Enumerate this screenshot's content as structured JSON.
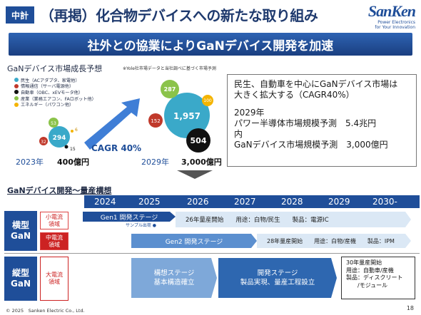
{
  "header": {
    "section_tag": "中計",
    "title": "（再掲）化合物デバイスへの新たな取り組み",
    "logo": "SanKen",
    "logo_sub1": "Power Electronics",
    "logo_sub2": "for Your Innovation"
  },
  "banner": "社外との協業によりGaNデバイス開発を加速",
  "market": {
    "title": "GaNデバイス市場成長予想",
    "note": "※Yole社市場データと当社調べに基づく市場予測",
    "legend": [
      {
        "label": "民生（ACアダプタ、家電他）",
        "color": "#3aa9c9"
      },
      {
        "label": "情報通信（サーバ電源他）",
        "color": "#c0392b"
      },
      {
        "label": "自動車（OBC、xEVモータ他）",
        "color": "#111111"
      },
      {
        "label": "産業（業務エアコン、FAロボット他）",
        "color": "#8bc34a"
      },
      {
        "label": "エネルギー（パワコン他）",
        "color": "#f4b400"
      }
    ],
    "y2023": {
      "year": "2023年",
      "value": "400億円",
      "consumer": "294",
      "telecom": "32",
      "auto": "15",
      "industry": "53",
      "energy": "6"
    },
    "y2029": {
      "year": "2029年",
      "value": "3,000億円",
      "consumer": "1,957",
      "telecom": "152",
      "auto": "504",
      "industry": "287",
      "energy": "100"
    },
    "cagr": "CAGR 40%",
    "summary": {
      "line1": "民生、自動車を中心にGaNデバイス市場は",
      "line2": "大きく拡大する（CAGR40%）",
      "line3": "2029年",
      "line4": "パワー半導体市場規模予測　5.4兆円",
      "line5": "内",
      "line6": "GaNデバイス市場規模予測　3,000億円"
    }
  },
  "plan": {
    "title": "GaNデバイス開発～量産構想",
    "years": [
      "2024",
      "2025",
      "2026",
      "2027",
      "2028",
      "2029",
      "2030-"
    ],
    "horizontal": {
      "label1": "横型",
      "label2": "GaN",
      "small_current_1": "小電流",
      "small_current_2": "領域",
      "mid_current_1": "中電流",
      "mid_current_2": "領域",
      "gen1": "Gen1 開発ステージ",
      "sample": "サンプル出荷 ●",
      "gen1_mass": "26年量産開始　　用途：白物/民生　　製品：電源IC",
      "gen2": "Gen2 開発ステージ",
      "gen2_mass": "28年量産開始　　用途：白物/産機　　製品：IPM"
    },
    "vertical": {
      "label1": "縦型",
      "label2": "GaN",
      "large_current_1": "大電流",
      "large_current_2": "領域",
      "stage1_a": "構想ステージ",
      "stage1_b": "基本構造確立",
      "stage2_a": "開発ステージ",
      "stage2_b": "製品実現、量産工程設立",
      "final_1": "30年量産開始",
      "final_2": "用途：自動車/産機",
      "final_3": "製品：ディスクリート",
      "final_4": "　　/モジュール"
    }
  },
  "footer": {
    "copyright": "© 2025　Sanken Electric Co., Ltd.",
    "page": "18"
  }
}
